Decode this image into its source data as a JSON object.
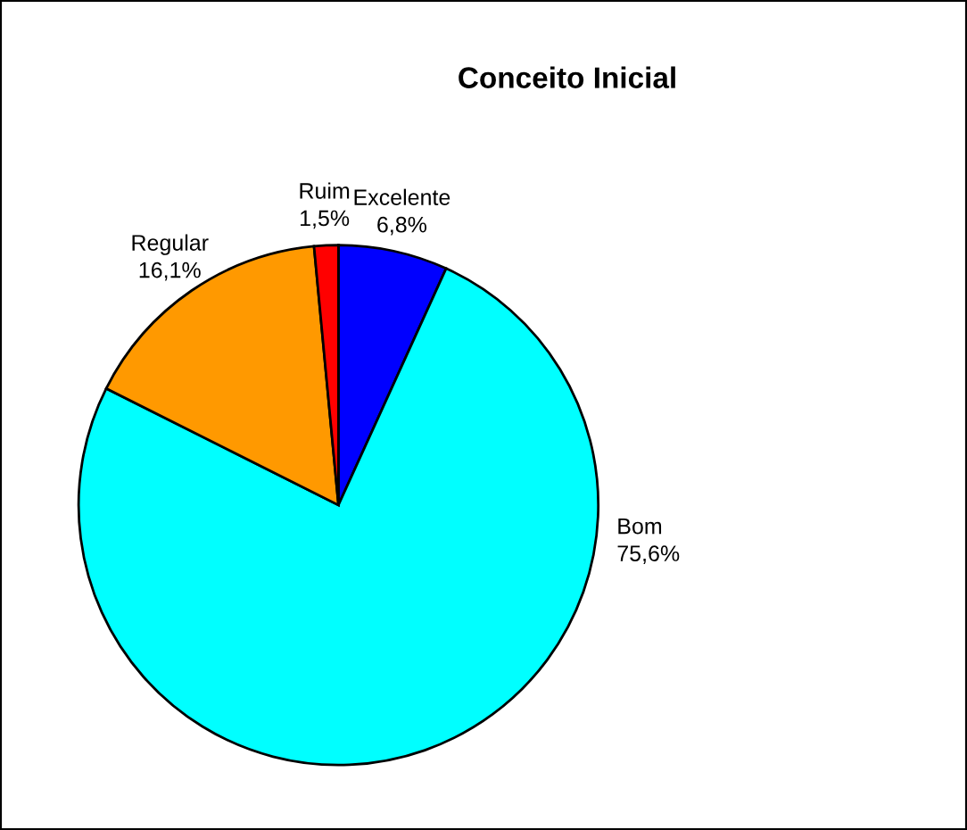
{
  "chart_data": {
    "type": "pie",
    "title": "Conceito Inicial",
    "categories": [
      "Excelente",
      "Bom",
      "Regular",
      "Ruim"
    ],
    "values": [
      6.8,
      75.6,
      16.1,
      1.5
    ],
    "value_labels": [
      "6,8%",
      "75,6%",
      "16,1%",
      "1,5%"
    ],
    "colors": [
      "#0000ff",
      "#00ffff",
      "#ff9900",
      "#ff0000"
    ],
    "legend": false
  }
}
